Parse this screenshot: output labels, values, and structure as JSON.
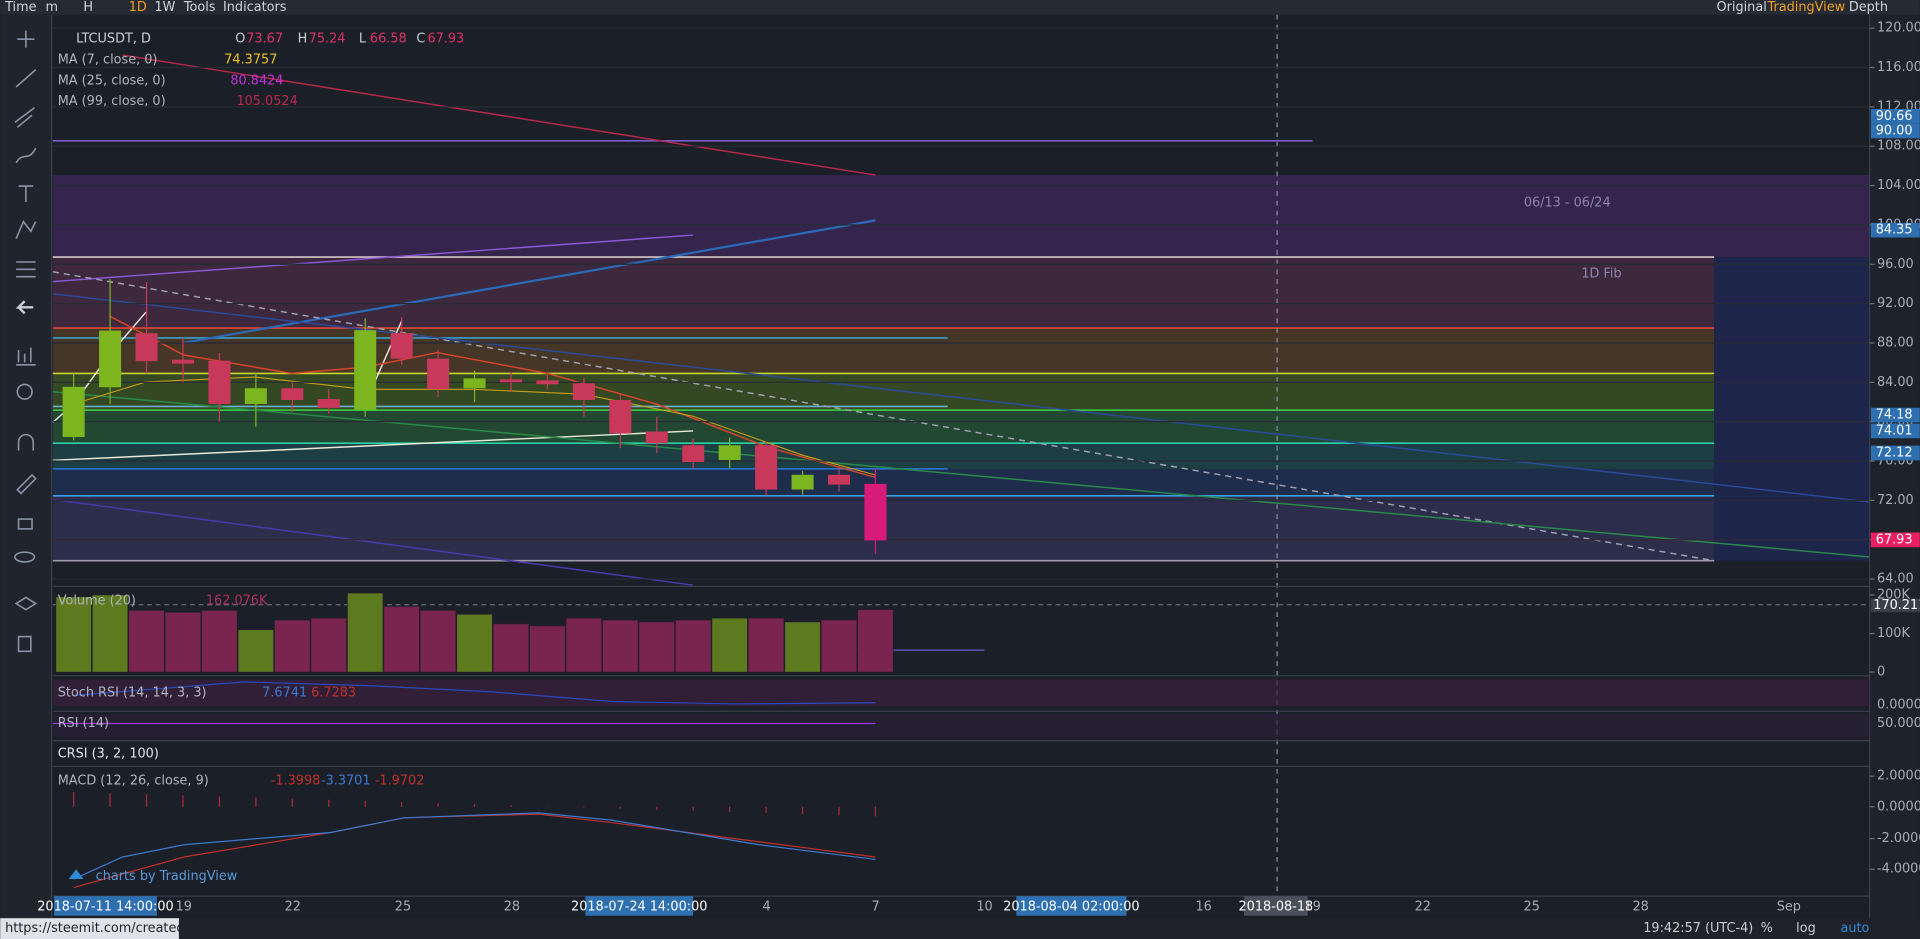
{
  "toolbar": {
    "left": [
      "Time",
      "m",
      "H",
      "1D",
      "1W",
      "Tools",
      "Indicators"
    ],
    "right": [
      "Original",
      "TradingView",
      "Depth"
    ]
  },
  "symbol": "LTCUSDT, D",
  "ohlc": [
    {
      "label": "O",
      "value": "73.67"
    },
    {
      "label": "H",
      "value": "75.24"
    },
    {
      "label": "L",
      "value": "66.58"
    },
    {
      "label": "C",
      "value": "67.93"
    }
  ],
  "moving_averages": [
    {
      "name": "MA (7, close, 0)",
      "value": "74.3757"
    },
    {
      "name": "MA (25, close, 0)",
      "value": "80.8424"
    },
    {
      "name": "MA (99, close, 0)",
      "value": "105.0524"
    }
  ],
  "annotations": [
    "06/13 - 06/24",
    "1D Fib"
  ],
  "price_axis": {
    "ticks": [
      "120.00",
      "116.00",
      "112.00",
      "108.00",
      "104.00",
      "100.00",
      "96.00",
      "92.00",
      "88.00",
      "84.00",
      "80.00",
      "76.00",
      "72.00",
      "68.00",
      "64.00"
    ],
    "tags": [
      "90.66",
      "90.00",
      "84.35",
      "74.18",
      "74.01",
      "72.12",
      "67.93"
    ]
  },
  "candles": [
    {
      "open": 78.44,
      "high": 84.9,
      "low": 78.1,
      "close": 83.54
    },
    {
      "open": 83.5,
      "high": 94.49,
      "low": 81.8,
      "close": 89.26
    },
    {
      "open": 89.0,
      "high": 94.2,
      "low": 84.9,
      "close": 86.15
    },
    {
      "open": 86.3,
      "high": 88.5,
      "low": 84.0,
      "close": 85.9
    },
    {
      "open": 86.2,
      "high": 87.0,
      "low": 80.0,
      "close": 81.8
    },
    {
      "open": 81.8,
      "high": 85.0,
      "low": 79.5,
      "close": 83.4
    },
    {
      "open": 83.4,
      "high": 84.0,
      "low": 81.0,
      "close": 82.2
    },
    {
      "open": 82.3,
      "high": 83.3,
      "low": 80.8,
      "close": 81.4
    },
    {
      "open": 81.2,
      "high": 90.5,
      "low": 80.5,
      "close": 89.3
    },
    {
      "open": 89.0,
      "high": 90.6,
      "low": 85.8,
      "close": 86.4
    },
    {
      "open": 86.4,
      "high": 87.3,
      "low": 82.5,
      "close": 83.3
    },
    {
      "open": 83.4,
      "high": 85.2,
      "low": 82.0,
      "close": 84.4
    },
    {
      "open": 84.3,
      "high": 85.0,
      "low": 83.0,
      "close": 84.0
    },
    {
      "open": 84.2,
      "high": 84.8,
      "low": 83.3,
      "close": 83.8
    },
    {
      "open": 83.9,
      "high": 84.5,
      "low": 80.5,
      "close": 82.2
    },
    {
      "open": 82.2,
      "high": 82.8,
      "low": 77.3,
      "close": 78.8
    },
    {
      "open": 79.0,
      "high": 80.5,
      "low": 76.8,
      "close": 77.8
    },
    {
      "open": 77.6,
      "high": 78.3,
      "low": 75.2,
      "close": 75.9
    },
    {
      "open": 76.1,
      "high": 78.4,
      "low": 75.3,
      "close": 77.6
    },
    {
      "open": 77.6,
      "high": 78.0,
      "low": 72.5,
      "close": 73.1
    },
    {
      "open": 73.1,
      "high": 75.0,
      "low": 72.6,
      "close": 74.6
    },
    {
      "open": 74.6,
      "high": 75.3,
      "low": 72.9,
      "close": 73.6
    },
    {
      "open": 73.67,
      "high": 75.24,
      "low": 66.58,
      "close": 67.93
    }
  ],
  "volume": {
    "name": "Volume (20)",
    "value": "162.076K",
    "ticks": [
      "200K",
      "100K",
      "0"
    ],
    "last": "170.211K",
    "values": [
      195000,
      200000,
      160000,
      155000,
      160000,
      110000,
      135000,
      140000,
      205000,
      170000,
      160000,
      150000,
      125000,
      120000,
      140000,
      135000,
      130000,
      135000,
      140000,
      140000,
      130000,
      135000,
      162076
    ]
  },
  "stoch_rsi": {
    "name": "Stoch RSI (14, 14, 3, 3)",
    "values": [
      "7.6741",
      "6.7283"
    ],
    "tick": "0.0000"
  },
  "rsi": {
    "name": "RSI (14)",
    "tick": "50.0000"
  },
  "crsi": {
    "name": "CRSI (3, 2, 100)"
  },
  "macd": {
    "name": "MACD (12, 26, close, 9)",
    "values": [
      "-1.3998",
      "-3.3701",
      "-1.9702"
    ],
    "ticks": [
      "2.0000",
      "0.0000",
      "-2.0000",
      "-4.0000"
    ]
  },
  "watermark": "charts by TradingView",
  "time_axis": {
    "labels": [
      "2018-07-11 14:00:00",
      "19",
      "22",
      "25",
      "28",
      "2018-07-24 14:00:00",
      "4",
      "7",
      "10",
      "2018-08-04 02:00:00",
      "16",
      "19",
      "22",
      "25",
      "28",
      "Sep"
    ],
    "crosshair": "2018-08-18"
  },
  "status": {
    "url": "https://steemit.com/created/",
    "time": "19:42:57 (UTC-4)",
    "buttons": [
      "%",
      "log",
      "auto"
    ]
  }
}
